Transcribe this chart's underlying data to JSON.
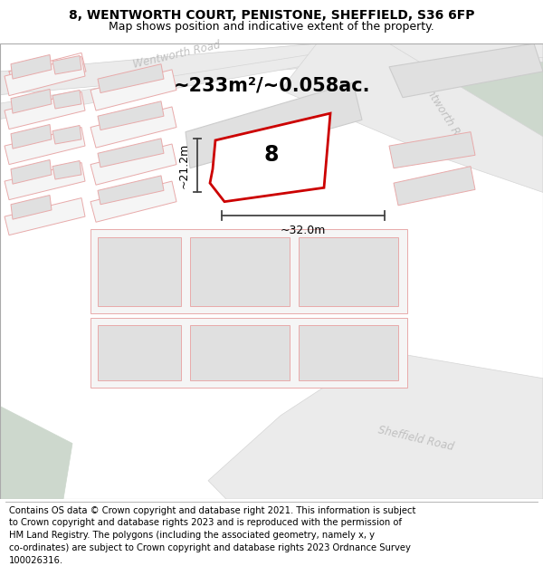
{
  "title_line1": "8, WENTWORTH COURT, PENISTONE, SHEFFIELD, S36 6FP",
  "title_line2": "Map shows position and indicative extent of the property.",
  "area_text": "~233m²/~0.058ac.",
  "property_number": "8",
  "dim_width": "~32.0m",
  "dim_height": "~21.2m",
  "footer_lines": [
    "Contains OS data © Crown copyright and database right 2021. This information is subject",
    "to Crown copyright and database rights 2023 and is reproduced with the permission of",
    "HM Land Registry. The polygons (including the associated geometry, namely x, y",
    "co-ordinates) are subject to Crown copyright and database rights 2023 Ordnance Survey",
    "100026316."
  ],
  "bg_color": "#f7f7f5",
  "green_color": "#cdd8cd",
  "property_outline_color": "#cc0000",
  "building_fill": "#e0e0e0",
  "building_outline": "#e8aaaa",
  "plot_line_color": "#e8aaaa",
  "road_fill": "#ebebeb",
  "dim_line_color": "#444444",
  "footer_fontsize": 7.2,
  "title_fontsize1": 10.0,
  "title_fontsize2": 9.0,
  "area_fontsize": 15,
  "road_label_color": "#c0c0c0",
  "road_label_fontsize": 8.5
}
